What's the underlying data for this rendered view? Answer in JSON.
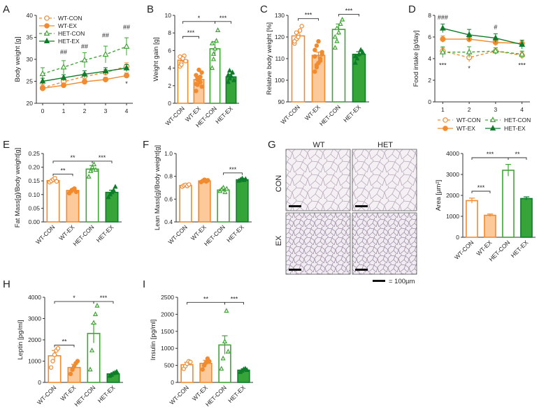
{
  "colors": {
    "wt": "#f28a2e",
    "wt_light": "#fcc99a",
    "het": "#3fa535",
    "het_dark": "#0e7d2a",
    "axis": "#333333"
  },
  "panels": {
    "A": {
      "letter": "A"
    },
    "B": {
      "letter": "B"
    },
    "C": {
      "letter": "C"
    },
    "D": {
      "letter": "D"
    },
    "E": {
      "letter": "E"
    },
    "F": {
      "letter": "F"
    },
    "G": {
      "letter": "G"
    },
    "H": {
      "letter": "H"
    },
    "I": {
      "letter": "I"
    }
  },
  "histology": {
    "col_labels": [
      "WT",
      "HET"
    ],
    "row_labels": [
      "CON",
      "EX"
    ],
    "scale_label": "= 100µm"
  },
  "chart_data": [
    {
      "id": "A",
      "type": "line",
      "title": "",
      "xlabel": "",
      "ylabel": "Body weight [g]",
      "x": [
        0,
        1,
        2,
        3,
        4
      ],
      "ylim": [
        20,
        40
      ],
      "yticks": [
        20,
        25,
        30,
        35,
        40
      ],
      "legend": [
        "WT-CON",
        "WT-EX",
        "HET-CON",
        "HET-EX"
      ],
      "series": [
        {
          "name": "WT-CON",
          "values": [
            23.5,
            24.9,
            26.1,
            27.0,
            28.4
          ],
          "err": [
            0.7,
            0.7,
            0.7,
            0.7,
            0.8
          ]
        },
        {
          "name": "WT-EX",
          "values": [
            23.4,
            24.1,
            24.9,
            25.4,
            26.3
          ],
          "err": [
            0.5,
            0.5,
            0.5,
            0.5,
            0.6
          ]
        },
        {
          "name": "HET-CON",
          "values": [
            26.7,
            28.2,
            29.8,
            31.1,
            32.9
          ],
          "err": [
            1.4,
            1.5,
            1.7,
            1.9,
            2.0
          ]
        },
        {
          "name": "HET-EX",
          "values": [
            25.0,
            25.8,
            26.6,
            27.3,
            28.0
          ],
          "err": [
            0.7,
            0.7,
            0.8,
            0.8,
            0.8
          ]
        }
      ],
      "annotations": [
        {
          "x": 1,
          "y": 31.2,
          "text": "##"
        },
        {
          "x": 2,
          "y": 32.5,
          "text": "##"
        },
        {
          "x": 3,
          "y": 35.0,
          "text": "##"
        },
        {
          "x": 4,
          "y": 36.8,
          "text": "##"
        },
        {
          "x": 4,
          "y": 24.0,
          "text": "*"
        }
      ]
    },
    {
      "id": "B",
      "type": "bar",
      "title": "",
      "xlabel": "",
      "ylabel": "Weight gain [g]",
      "categories": [
        "WT-CON",
        "WT-EX",
        "HET-CON",
        "HET-EX"
      ],
      "values": [
        4.9,
        2.7,
        6.2,
        3.0
      ],
      "err": [
        0.4,
        0.3,
        0.8,
        0.3
      ],
      "ylim": [
        0,
        10
      ],
      "yticks": [
        0,
        2,
        4,
        6,
        8,
        10
      ],
      "points": [
        [
          4.2,
          4.6,
          5.0,
          5.4,
          4.8,
          5.3,
          4.4,
          5.1
        ],
        [
          1.4,
          2.1,
          2.6,
          3.0,
          3.5,
          2.2,
          2.9,
          3.8,
          2.4,
          1.9,
          3.2,
          2.7
        ],
        [
          4.0,
          5.0,
          6.2,
          7.1,
          8.3,
          6.8,
          5.6
        ],
        [
          2.4,
          2.8,
          3.1,
          3.5,
          2.6,
          3.2,
          3.7
        ]
      ],
      "brackets": [
        {
          "a": 0,
          "b": 1,
          "y": 7.6,
          "text": "***"
        },
        {
          "a": 0,
          "b": 2,
          "y": 9.3,
          "text": "*"
        },
        {
          "a": 2,
          "b": 3,
          "y": 9.3,
          "text": "***"
        }
      ]
    },
    {
      "id": "C",
      "type": "bar",
      "title": "",
      "xlabel": "",
      "ylabel": "Relative body weight [%]",
      "categories": [
        "WT-CON",
        "WT-EX",
        "HET-CON",
        "HET-EX"
      ],
      "values": [
        120.5,
        111.5,
        123.5,
        112.0
      ],
      "err": [
        1.8,
        1.5,
        2.5,
        1.2
      ],
      "ylim": [
        90,
        130
      ],
      "yticks": [
        90,
        100,
        110,
        120,
        130
      ],
      "points": [
        [
          117,
          119,
          121,
          123,
          125,
          118,
          122,
          120
        ],
        [
          104,
          106,
          108,
          110,
          112,
          114,
          116,
          118,
          109,
          113,
          111,
          107
        ],
        [
          115,
          118,
          122,
          126,
          128,
          120,
          124
        ],
        [
          108,
          110,
          112,
          114,
          113,
          111
        ]
      ],
      "brackets": [
        {
          "a": 0,
          "b": 1,
          "y": 128.5,
          "text": "***"
        },
        {
          "a": 2,
          "b": 3,
          "y": 130.5,
          "text": "***"
        }
      ]
    },
    {
      "id": "D",
      "type": "line",
      "title": "",
      "xlabel": "",
      "ylabel": "Food intake [g/day]",
      "x": [
        1,
        2,
        3,
        4
      ],
      "ylim": [
        0,
        8
      ],
      "yticks": [
        0,
        2,
        4,
        6,
        8
      ],
      "legend": [
        "WT-CON",
        "WT-EX",
        "HET-CON",
        "HET-EX"
      ],
      "series": [
        {
          "name": "WT-CON",
          "values": [
            4.7,
            4.1,
            4.7,
            4.3
          ],
          "err": [
            0.3,
            0.4,
            0.3,
            0.3
          ]
        },
        {
          "name": "WT-EX",
          "values": [
            5.8,
            5.8,
            5.5,
            5.4
          ],
          "err": [
            0.3,
            0.3,
            0.3,
            0.3
          ]
        },
        {
          "name": "HET-CON",
          "values": [
            4.6,
            4.6,
            4.7,
            4.4
          ],
          "err": [
            0.5,
            0.5,
            0.3,
            0.3
          ]
        },
        {
          "name": "HET-EX",
          "values": [
            6.8,
            6.2,
            5.9,
            5.3
          ],
          "err": [
            0.4,
            0.5,
            0.4,
            0.4
          ]
        }
      ],
      "annotations": [
        {
          "x": 1,
          "y": 7.6,
          "text": "###"
        },
        {
          "x": 3,
          "y": 6.7,
          "text": "#"
        },
        {
          "x": 1,
          "y": 3.2,
          "text": "***"
        },
        {
          "x": 2,
          "y": 2.9,
          "text": "*"
        },
        {
          "x": 4,
          "y": 3.2,
          "text": "***"
        }
      ]
    },
    {
      "id": "E",
      "type": "bar",
      "title": "",
      "xlabel": "",
      "ylabel": "Fat Mass[g]/Body weight[g]",
      "categories": [
        "WT-CON",
        "WT-EX",
        "HET-CON",
        "HET-EX"
      ],
      "values": [
        0.151,
        0.115,
        0.193,
        0.108
      ],
      "err": [
        0.006,
        0.006,
        0.013,
        0.008
      ],
      "ylim": [
        0,
        0.25
      ],
      "yticks": [
        0,
        0.05,
        0.1,
        0.15,
        0.2,
        0.25
      ],
      "points": [
        [
          0.145,
          0.15,
          0.155,
          0.16,
          0.148
        ],
        [
          0.105,
          0.112,
          0.118,
          0.122,
          0.11
        ],
        [
          0.165,
          0.185,
          0.2,
          0.21,
          0.19
        ],
        [
          0.09,
          0.1,
          0.108,
          0.115,
          0.128
        ]
      ],
      "brackets": [
        {
          "a": 0,
          "b": 1,
          "y": 0.175,
          "text": "**"
        },
        {
          "a": 0,
          "b": 2,
          "y": 0.222,
          "text": "**"
        },
        {
          "a": 2,
          "b": 3,
          "y": 0.222,
          "text": "***"
        }
      ]
    },
    {
      "id": "F",
      "type": "bar",
      "title": "",
      "xlabel": "",
      "ylabel": "Lean Mass[g]/Body weight[g]",
      "categories": [
        "WT-CON",
        "WT-EX",
        "HET-CON",
        "HET-EX"
      ],
      "values": [
        0.72,
        0.76,
        0.68,
        0.77
      ],
      "err": [
        0.006,
        0.006,
        0.01,
        0.007
      ],
      "ylim": [
        0.4,
        1.0
      ],
      "yticks": [
        0.4,
        0.6,
        0.8,
        1.0
      ],
      "points": [
        [
          0.71,
          0.72,
          0.725,
          0.715,
          0.728
        ],
        [
          0.75,
          0.76,
          0.77,
          0.755,
          0.765
        ],
        [
          0.67,
          0.685,
          0.7,
          0.66,
          0.69
        ],
        [
          0.76,
          0.77,
          0.78,
          0.765,
          0.775
        ]
      ],
      "brackets": [
        {
          "a": 2,
          "b": 3,
          "y": 0.83,
          "text": "***"
        }
      ]
    },
    {
      "id": "G",
      "type": "bar",
      "title": "",
      "xlabel": "",
      "ylabel": "Area [µm²]",
      "categories": [
        "WT-CON",
        "WT-EX",
        "HET-CON",
        "HET-EX"
      ],
      "values": [
        1750,
        1050,
        3200,
        1850
      ],
      "err": [
        120,
        60,
        280,
        80
      ],
      "ylim": [
        0,
        4000
      ],
      "yticks": [
        0,
        1000,
        2000,
        3000,
        4000
      ],
      "points": [],
      "brackets": [
        {
          "a": 0,
          "b": 1,
          "y": 2200,
          "text": "***"
        },
        {
          "a": 0,
          "b": 2,
          "y": 3800,
          "text": "***"
        },
        {
          "a": 2,
          "b": 3,
          "y": 3800,
          "text": "**"
        }
      ]
    },
    {
      "id": "H",
      "type": "bar",
      "title": "",
      "xlabel": "",
      "ylabel": "Leptin [pg/ml]",
      "categories": [
        "WT-CON",
        "WT-EX",
        "HET-CON",
        "HET-EX"
      ],
      "values": [
        1250,
        700,
        2300,
        400
      ],
      "err": [
        250,
        150,
        450,
        50
      ],
      "ylim": [
        0,
        4000
      ],
      "yticks": [
        0,
        1000,
        2000,
        3000,
        4000
      ],
      "points": [
        [
          700,
          1000,
          1300,
          1500,
          1600
        ],
        [
          400,
          600,
          750,
          900,
          1000
        ],
        [
          600,
          1500,
          2800,
          3200,
          3600
        ],
        [
          300,
          350,
          420,
          450,
          500
        ]
      ],
      "brackets": [
        {
          "a": 0,
          "b": 1,
          "y": 1750,
          "text": "**"
        },
        {
          "a": 0,
          "b": 2,
          "y": 3800,
          "text": "*"
        },
        {
          "a": 2,
          "b": 3,
          "y": 3800,
          "text": "***"
        }
      ]
    },
    {
      "id": "I",
      "type": "bar",
      "title": "",
      "xlabel": "",
      "ylabel": "Insulin [pg/ml]",
      "categories": [
        "WT-CON",
        "WT-EX",
        "HET-CON",
        "HET-EX"
      ],
      "values": [
        520,
        560,
        1100,
        360
      ],
      "err": [
        70,
        90,
        270,
        40
      ],
      "ylim": [
        0,
        2500
      ],
      "yticks": [
        0,
        500,
        1000,
        1500,
        2000,
        2500
      ],
      "points": [
        [
          400,
          480,
          550,
          620,
          600
        ],
        [
          380,
          500,
          580,
          700,
          620
        ],
        [
          400,
          700,
          1200,
          2100,
          900
        ],
        [
          300,
          340,
          380,
          400,
          360
        ]
      ],
      "brackets": [
        {
          "a": 0,
          "b": 2,
          "y": 2350,
          "text": "**"
        },
        {
          "a": 2,
          "b": 3,
          "y": 2350,
          "text": "***"
        }
      ]
    }
  ]
}
